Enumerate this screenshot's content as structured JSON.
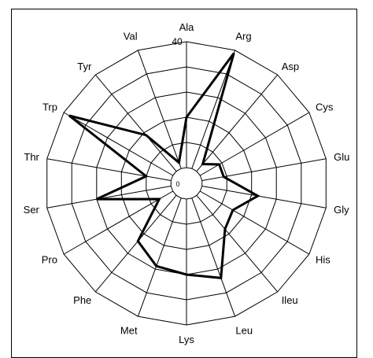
{
  "chart_data": {
    "type": "radar",
    "title": "",
    "max_tick_label": "40",
    "min_tick_label": "0",
    "rmax": 40,
    "rings": 5,
    "grid": true,
    "categories": [
      "Ala",
      "Arg",
      "Asp",
      "Cys",
      "Glu",
      "Gly",
      "His",
      "Ileu",
      "Leu",
      "Lys",
      "Met",
      "Phe",
      "Pro",
      "Ser",
      "Thr",
      "Trp",
      "Tyr",
      "Val"
    ],
    "series": [
      {
        "values": [
          16,
          39,
          3,
          7,
          7,
          18,
          12,
          14,
          27,
          24,
          23,
          19,
          5,
          24,
          8,
          38,
          15,
          2
        ]
      }
    ]
  }
}
